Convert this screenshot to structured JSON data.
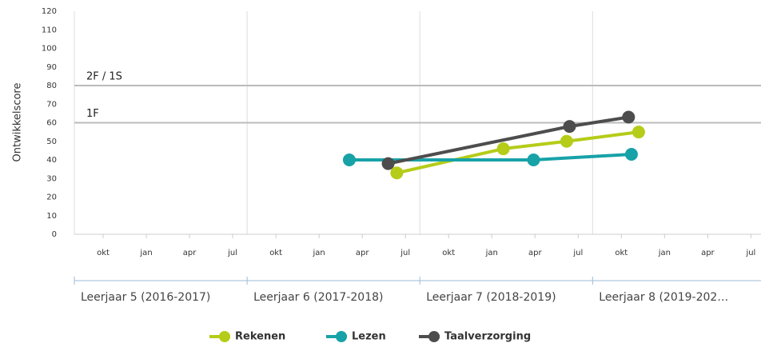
{
  "chart_data": {
    "type": "line",
    "ylabel": "Ontwikkelscore",
    "ylim": [
      0,
      120
    ],
    "yticks": [
      0,
      10,
      20,
      30,
      40,
      50,
      60,
      70,
      80,
      90,
      100,
      110,
      120
    ],
    "xlim": [
      0,
      47.7
    ],
    "xticks": [
      {
        "value": 2,
        "label": "okt"
      },
      {
        "value": 5,
        "label": "jan"
      },
      {
        "value": 8,
        "label": "apr"
      },
      {
        "value": 11,
        "label": "jul"
      },
      {
        "value": 14,
        "label": "okt"
      },
      {
        "value": 17,
        "label": "jan"
      },
      {
        "value": 20,
        "label": "apr"
      },
      {
        "value": 23,
        "label": "jul"
      },
      {
        "value": 26,
        "label": "okt"
      },
      {
        "value": 29,
        "label": "jan"
      },
      {
        "value": 32,
        "label": "apr"
      },
      {
        "value": 35,
        "label": "jul"
      },
      {
        "value": 38,
        "label": "okt"
      },
      {
        "value": 41,
        "label": "jan"
      },
      {
        "value": 44,
        "label": "apr"
      },
      {
        "value": 47,
        "label": "jul"
      }
    ],
    "xgroup_ticks": [
      0,
      12,
      24,
      36
    ],
    "xgroups": [
      "Leerjaar 5 (2016-2017)",
      "Leerjaar 6 (2017-2018)",
      "Leerjaar 7 (2018-2019)",
      "Leerjaar 8 (2019-202…"
    ],
    "reference_lines": [
      {
        "value": 80,
        "label": "2F / 1S"
      },
      {
        "value": 60,
        "label": "1F"
      }
    ],
    "grid": false,
    "series": [
      {
        "name": "Rekenen",
        "color": "#b5cc18",
        "x": [
          22.4,
          29.8,
          34.2,
          39.2
        ],
        "values": [
          33,
          46,
          50,
          55
        ]
      },
      {
        "name": "Lezen",
        "color": "#17a2a8",
        "x": [
          19.1,
          31.9,
          38.7
        ],
        "values": [
          40,
          40,
          43
        ]
      },
      {
        "name": "Taalverzorging",
        "color": "#4d4d4d",
        "x": [
          21.8,
          34.4,
          38.5
        ],
        "values": [
          38,
          58,
          63
        ]
      }
    ]
  }
}
